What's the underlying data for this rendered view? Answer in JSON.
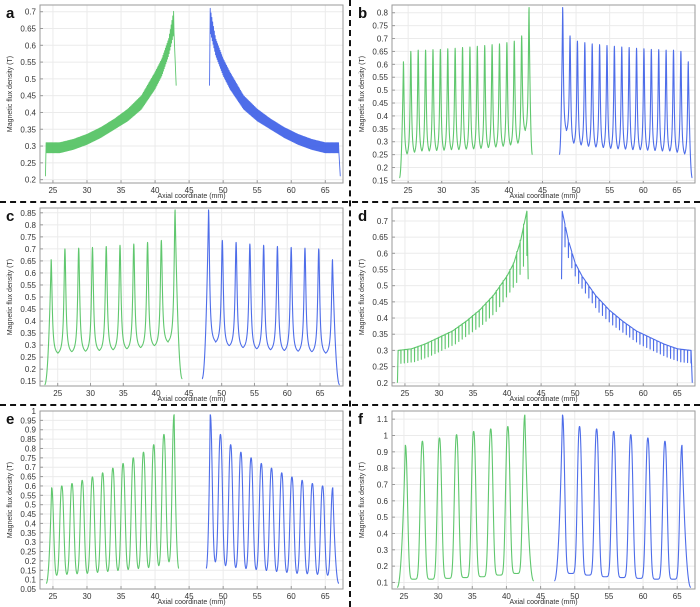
{
  "colors": {
    "green": "#4fc15e",
    "blue": "#3b5de7",
    "grid": "#ebebeb",
    "frame": "#9a9a9a"
  },
  "chart_data": [
    {
      "id": "a",
      "label": "a",
      "type": "line",
      "style": "band",
      "period": 0.12,
      "title": "",
      "xlabel": "Axial coordinate (mm)",
      "ylabel": "Magnetic flux density  (T)",
      "xlim": [
        23.1,
        67.6
      ],
      "ylim": [
        0.19,
        0.72
      ],
      "xticks": [
        25,
        30,
        35,
        40,
        45,
        50,
        55,
        60,
        65
      ],
      "yticks": [
        0.2,
        0.25,
        0.3,
        0.35,
        0.4,
        0.45,
        0.5,
        0.55,
        0.6,
        0.65,
        0.7
      ],
      "series": [
        {
          "name": "green",
          "color": "green",
          "start": [
            23.9,
            0.21
          ],
          "end": [
            43.1,
            0.48
          ],
          "x": [
            24,
            26,
            28,
            30,
            32,
            34,
            36,
            38,
            40,
            41,
            42,
            42.8
          ],
          "upper": [
            0.31,
            0.31,
            0.32,
            0.335,
            0.355,
            0.38,
            0.41,
            0.45,
            0.52,
            0.56,
            0.62,
            0.71
          ],
          "lower": [
            0.28,
            0.28,
            0.29,
            0.305,
            0.325,
            0.35,
            0.375,
            0.41,
            0.47,
            0.51,
            0.57,
            0.64
          ]
        },
        {
          "name": "blue",
          "color": "blue",
          "start": [
            48.0,
            0.48
          ],
          "end": [
            67.2,
            0.21
          ],
          "x": [
            48.1,
            48.9,
            50,
            51,
            53,
            55,
            57,
            59,
            61,
            63,
            65,
            67
          ],
          "upper": [
            0.71,
            0.62,
            0.56,
            0.52,
            0.45,
            0.41,
            0.38,
            0.355,
            0.335,
            0.32,
            0.31,
            0.31
          ],
          "lower": [
            0.64,
            0.57,
            0.51,
            0.47,
            0.41,
            0.375,
            0.35,
            0.325,
            0.305,
            0.29,
            0.28,
            0.28
          ]
        }
      ]
    },
    {
      "id": "b",
      "label": "b",
      "type": "line",
      "style": "sharp",
      "width": 0.12,
      "title": "",
      "xlabel": "Axial coordinate (mm)",
      "ylabel": "Magnetic flux density  (T)",
      "xlim": [
        22.6,
        67.7
      ],
      "ylim": [
        0.14,
        0.83
      ],
      "xticks": [
        25,
        30,
        35,
        40,
        45,
        50,
        55,
        60,
        65
      ],
      "yticks": [
        0.15,
        0.2,
        0.25,
        0.3,
        0.35,
        0.4,
        0.45,
        0.5,
        0.55,
        0.6,
        0.65,
        0.7,
        0.75,
        0.8
      ],
      "series": [
        {
          "name": "green",
          "color": "green",
          "start": [
            23.7,
            0.16
          ],
          "end": [
            43.5,
            0.25
          ],
          "peaks_x": [
            24.3,
            25.4,
            26.5,
            27.6,
            28.7,
            29.8,
            30.9,
            32.0,
            33.1,
            34.2,
            35.3,
            36.4,
            37.5,
            38.6,
            39.7,
            40.8,
            41.9,
            43.0
          ],
          "peaks_y": [
            0.61,
            0.65,
            0.655,
            0.655,
            0.657,
            0.658,
            0.66,
            0.662,
            0.665,
            0.667,
            0.67,
            0.673,
            0.676,
            0.679,
            0.684,
            0.69,
            0.71,
            0.82
          ],
          "valleys": [
            0.235,
            0.24,
            0.245,
            0.245,
            0.247,
            0.248,
            0.25,
            0.25,
            0.252,
            0.253,
            0.255,
            0.258,
            0.26,
            0.263,
            0.268,
            0.275,
            0.325
          ]
        },
        {
          "name": "blue",
          "color": "blue",
          "start": [
            47.5,
            0.25
          ],
          "end": [
            67.3,
            0.16
          ],
          "peaks_x": [
            48.0,
            49.1,
            50.2,
            51.3,
            52.4,
            53.5,
            54.6,
            55.7,
            56.8,
            57.9,
            59.0,
            60.1,
            61.2,
            62.3,
            63.4,
            64.5,
            65.6,
            66.7
          ],
          "peaks_y": [
            0.82,
            0.71,
            0.69,
            0.684,
            0.679,
            0.676,
            0.673,
            0.67,
            0.667,
            0.665,
            0.662,
            0.66,
            0.658,
            0.657,
            0.655,
            0.655,
            0.65,
            0.61
          ],
          "valleys": [
            0.325,
            0.275,
            0.268,
            0.263,
            0.26,
            0.258,
            0.255,
            0.253,
            0.252,
            0.25,
            0.25,
            0.248,
            0.247,
            0.245,
            0.245,
            0.24,
            0.235
          ]
        }
      ]
    },
    {
      "id": "c",
      "label": "c",
      "type": "line",
      "style": "sharp",
      "width": 0.18,
      "title": "",
      "xlabel": "Axial coordinate (mm)",
      "ylabel": "Magnetic flux density  (T)",
      "xlim": [
        22.3,
        68.5
      ],
      "ylim": [
        0.13,
        0.87
      ],
      "xticks": [
        25,
        30,
        35,
        40,
        45,
        50,
        55,
        60,
        65
      ],
      "yticks": [
        0.15,
        0.2,
        0.25,
        0.3,
        0.35,
        0.4,
        0.45,
        0.5,
        0.55,
        0.6,
        0.65,
        0.7,
        0.75,
        0.8,
        0.85
      ],
      "series": [
        {
          "name": "green",
          "color": "green",
          "start": [
            23.0,
            0.135
          ],
          "end": [
            44.0,
            0.16
          ],
          "peaks_x": [
            24.0,
            26.1,
            28.2,
            30.3,
            32.4,
            34.5,
            36.6,
            38.7,
            40.8,
            42.9
          ],
          "peaks_y": [
            0.655,
            0.7,
            0.703,
            0.706,
            0.71,
            0.715,
            0.72,
            0.727,
            0.735,
            0.862
          ],
          "valleys": [
            0.255,
            0.26,
            0.262,
            0.265,
            0.268,
            0.272,
            0.277,
            0.285,
            0.3
          ]
        },
        {
          "name": "blue",
          "color": "blue",
          "start": [
            47.0,
            0.16
          ],
          "end": [
            68.0,
            0.135
          ],
          "peaks_x": [
            48.0,
            50.1,
            52.2,
            54.3,
            56.4,
            58.5,
            60.6,
            62.7,
            64.8,
            66.9
          ],
          "peaks_y": [
            0.862,
            0.735,
            0.727,
            0.72,
            0.715,
            0.71,
            0.706,
            0.703,
            0.7,
            0.655
          ],
          "valleys": [
            0.3,
            0.285,
            0.277,
            0.272,
            0.268,
            0.265,
            0.262,
            0.26,
            0.255
          ]
        }
      ]
    },
    {
      "id": "d",
      "label": "d",
      "type": "line",
      "style": "saw",
      "period": 0.5,
      "title": "",
      "xlabel": "Axial coordinate (mm)",
      "ylabel": "Magnetic flux density  (T)",
      "xlim": [
        23.1,
        67.6
      ],
      "ylim": [
        0.19,
        0.74
      ],
      "xticks": [
        25,
        30,
        35,
        40,
        45,
        50,
        55,
        60,
        65
      ],
      "yticks": [
        0.2,
        0.25,
        0.3,
        0.35,
        0.4,
        0.45,
        0.5,
        0.55,
        0.6,
        0.65,
        0.7
      ],
      "series": [
        {
          "name": "green",
          "color": "green",
          "start": [
            23.9,
            0.2
          ],
          "end": [
            43.1,
            0.52
          ],
          "x": [
            24,
            26,
            28,
            30,
            32,
            34,
            36,
            38,
            40,
            41,
            42,
            42.9
          ],
          "upper": [
            0.3,
            0.305,
            0.32,
            0.34,
            0.36,
            0.39,
            0.425,
            0.47,
            0.53,
            0.57,
            0.64,
            0.73
          ],
          "lower": [
            0.26,
            0.265,
            0.28,
            0.3,
            0.32,
            0.35,
            0.38,
            0.42,
            0.48,
            0.51,
            0.56,
            0.62
          ]
        },
        {
          "name": "blue",
          "color": "blue",
          "start": [
            48.0,
            0.52
          ],
          "end": [
            67.2,
            0.2
          ],
          "x": [
            48.1,
            49,
            50,
            51,
            53,
            55,
            57,
            59,
            61,
            63,
            65,
            67
          ],
          "upper": [
            0.73,
            0.64,
            0.57,
            0.53,
            0.47,
            0.425,
            0.39,
            0.36,
            0.34,
            0.32,
            0.305,
            0.3
          ],
          "lower": [
            0.62,
            0.56,
            0.51,
            0.48,
            0.42,
            0.38,
            0.35,
            0.32,
            0.3,
            0.28,
            0.265,
            0.26
          ]
        }
      ]
    },
    {
      "id": "e",
      "label": "e",
      "type": "line",
      "style": "round",
      "width": 0.38,
      "title": "",
      "xlabel": "Axial coordinate (mm)",
      "ylabel": "Magnetic flux density  (T)",
      "xlim": [
        23.1,
        67.6
      ],
      "ylim": [
        0.05,
        1.0
      ],
      "xticks": [
        25,
        30,
        35,
        40,
        45,
        50,
        55,
        60,
        65
      ],
      "yticks": [
        0.05,
        0.1,
        0.15,
        0.2,
        0.25,
        0.3,
        0.35,
        0.4,
        0.45,
        0.5,
        0.55,
        0.6,
        0.65,
        0.7,
        0.75,
        0.8,
        0.85,
        0.9,
        0.95,
        1
      ],
      "series": [
        {
          "name": "green",
          "color": "green",
          "start": [
            24.0,
            0.08
          ],
          "end": [
            43.5,
            0.16
          ],
          "peaks_x": [
            24.8,
            26.3,
            27.8,
            29.3,
            30.8,
            32.3,
            33.8,
            35.3,
            36.8,
            38.3,
            39.8,
            41.3,
            42.8
          ],
          "peaks_y": [
            0.59,
            0.6,
            0.613,
            0.63,
            0.648,
            0.67,
            0.695,
            0.72,
            0.75,
            0.78,
            0.82,
            0.875,
            0.98
          ],
          "valleys": [
            0.12,
            0.125,
            0.128,
            0.13,
            0.135,
            0.14,
            0.145,
            0.15,
            0.155,
            0.16,
            0.17,
            0.19
          ]
        },
        {
          "name": "blue",
          "color": "blue",
          "start": [
            47.5,
            0.16
          ],
          "end": [
            67.0,
            0.08
          ],
          "peaks_x": [
            48.1,
            49.6,
            51.1,
            52.6,
            54.1,
            55.6,
            57.1,
            58.6,
            60.1,
            61.6,
            63.1,
            64.6,
            66.1
          ],
          "peaks_y": [
            0.98,
            0.875,
            0.82,
            0.78,
            0.75,
            0.72,
            0.695,
            0.67,
            0.648,
            0.63,
            0.613,
            0.6,
            0.59
          ],
          "valleys": [
            0.19,
            0.17,
            0.16,
            0.155,
            0.15,
            0.145,
            0.14,
            0.135,
            0.13,
            0.128,
            0.125,
            0.12
          ]
        }
      ]
    },
    {
      "id": "f",
      "label": "f",
      "type": "line",
      "style": "round",
      "width": 0.42,
      "title": "",
      "xlabel": "Axial coordinate (mm)",
      "ylabel": "Magnetic flux density  (T)",
      "xlim": [
        23.25,
        67.6
      ],
      "ylim": [
        0.06,
        1.15
      ],
      "xticks": [
        25,
        30,
        35,
        40,
        45,
        50,
        55,
        60,
        65
      ],
      "yticks": [
        0.1,
        0.2,
        0.3,
        0.4,
        0.5,
        0.6,
        0.7,
        0.8,
        0.9,
        1,
        1.1
      ],
      "series": [
        {
          "name": "green",
          "color": "green",
          "start": [
            24.0,
            0.07
          ],
          "end": [
            44.0,
            0.11
          ],
          "peaks_x": [
            25.2,
            27.7,
            30.2,
            32.7,
            35.2,
            37.7,
            40.2,
            42.7
          ],
          "peaks_y": [
            0.94,
            0.965,
            0.985,
            1.005,
            1.025,
            1.04,
            1.055,
            1.125
          ],
          "valleys": [
            0.12,
            0.12,
            0.125,
            0.13,
            0.135,
            0.145,
            0.155
          ]
        },
        {
          "name": "blue",
          "color": "blue",
          "start": [
            47.0,
            0.11
          ],
          "end": [
            67.0,
            0.07
          ],
          "peaks_x": [
            48.2,
            50.7,
            53.2,
            55.7,
            58.2,
            60.7,
            63.2,
            65.7
          ],
          "peaks_y": [
            1.125,
            1.055,
            1.04,
            1.025,
            1.005,
            0.985,
            0.965,
            0.94
          ],
          "valleys": [
            0.155,
            0.145,
            0.135,
            0.13,
            0.125,
            0.12,
            0.12
          ]
        }
      ]
    }
  ]
}
